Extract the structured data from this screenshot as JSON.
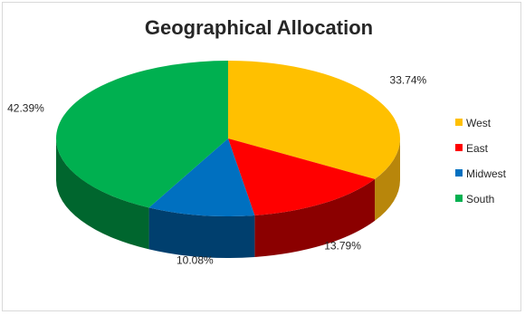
{
  "chart_data": {
    "type": "pie",
    "title": "Geographical Allocation",
    "categories": [
      "West",
      "East",
      "Midwest",
      "South"
    ],
    "values": [
      33.74,
      13.79,
      10.08,
      42.39
    ],
    "labels": [
      "33.74%",
      "13.79%",
      "10.08%",
      "42.39%"
    ],
    "colors": [
      "#ffc000",
      "#ff0000",
      "#0070c0",
      "#00b050"
    ],
    "side_colors": [
      "#b8860b",
      "#8b0000",
      "#003f6e",
      "#00662e"
    ],
    "legend_position": "right",
    "style": "3d"
  }
}
